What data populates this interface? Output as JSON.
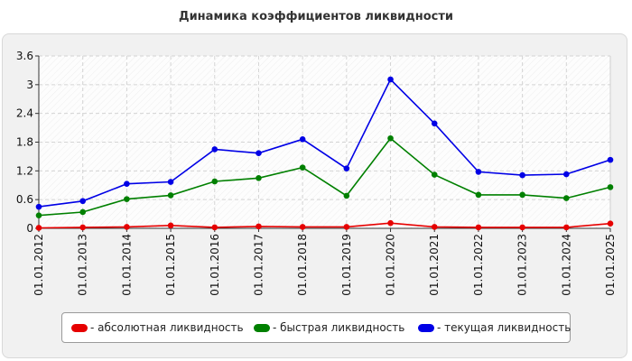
{
  "chart_data": {
    "type": "line",
    "title": "Динамика коэффициентов ликвидности",
    "x": [
      "01.01.2012",
      "01.01.2013",
      "01.01.2014",
      "01.01.2015",
      "01.01.2016",
      "01.01.2017",
      "01.01.2018",
      "01.01.2019",
      "01.01.2020",
      "01.01.2021",
      "01.01.2022",
      "01.01.2023",
      "01.01.2024",
      "01.01.2025"
    ],
    "yticks": [
      "0",
      "0.6",
      "1.2",
      "1.8",
      "2.4",
      "3",
      "3.6"
    ],
    "ylim": [
      0,
      3.6
    ],
    "grid": true,
    "legend_position": "bottom",
    "series": [
      {
        "name": "- абсолютная ликвидность",
        "color": "#e60000",
        "values": [
          0.01,
          0.02,
          0.03,
          0.06,
          0.02,
          0.04,
          0.03,
          0.03,
          0.11,
          0.03,
          0.02,
          0.02,
          0.02,
          0.1
        ]
      },
      {
        "name": "- быстрая ликвидность",
        "color": "#008000",
        "values": [
          0.27,
          0.34,
          0.61,
          0.69,
          0.98,
          1.05,
          1.27,
          0.68,
          1.88,
          1.12,
          0.7,
          0.7,
          0.63,
          0.86
        ]
      },
      {
        "name": "- текущая ликвидность",
        "color": "#0000e6",
        "values": [
          0.45,
          0.57,
          0.93,
          0.97,
          1.65,
          1.57,
          1.86,
          1.25,
          3.11,
          2.19,
          1.18,
          1.11,
          1.13,
          1.43
        ]
      }
    ]
  }
}
